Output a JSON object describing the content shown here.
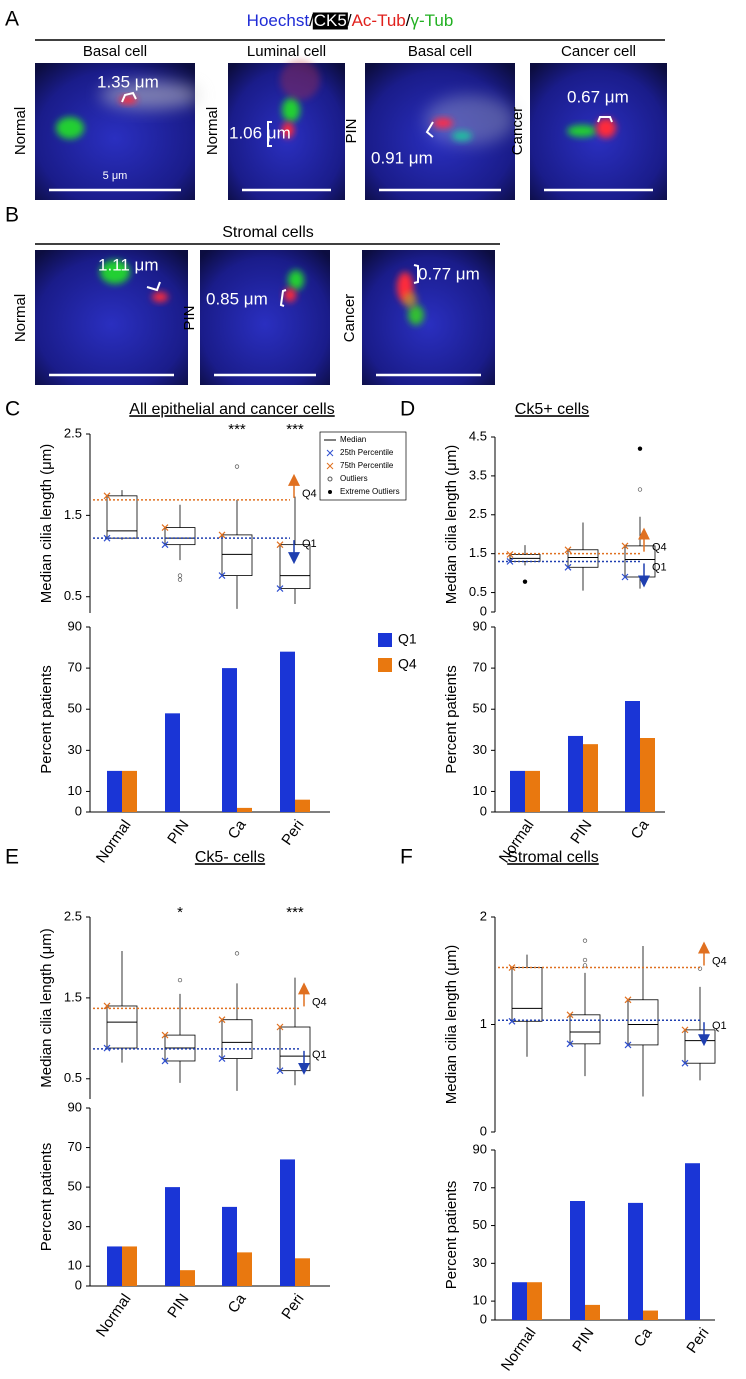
{
  "figure_panels": [
    {
      "label": "A",
      "header": [
        {
          "text": "Hoechst",
          "color": "#1f2bd6"
        },
        {
          "text": "/",
          "color": "#000000"
        },
        {
          "text": "CK5",
          "color": "#ffffff",
          "background": "#000000"
        },
        {
          "text": "/",
          "color": "#000000"
        },
        {
          "text": "Ac-Tub",
          "color": "#e0201c"
        },
        {
          "text": "/",
          "color": "#000000"
        },
        {
          "text": "γ-Tub",
          "color": "#22b022"
        }
      ],
      "images": [
        {
          "title": "Basal cell",
          "side_label": "Normal",
          "measurement": "1.35 μm",
          "scale_label": "5 μm"
        },
        {
          "title": "Luminal cell",
          "side_label": "Normal",
          "measurement": "1.06 μm"
        },
        {
          "title": "Basal cell",
          "side_label": "PIN",
          "measurement": "0.91 μm"
        },
        {
          "title": "Cancer cell",
          "side_label": "Cancer",
          "measurement": "0.67 μm"
        }
      ]
    },
    {
      "label": "B",
      "header_text": "Stromal cells",
      "images": [
        {
          "side_label": "Normal",
          "measurement": "1.11 μm"
        },
        {
          "side_label": "PIN",
          "measurement": "0.85 μm"
        },
        {
          "side_label": "Cancer",
          "measurement": "0.77 μm"
        }
      ]
    }
  ],
  "chart_data": [
    {
      "type": "box",
      "panel": "C",
      "title": "All epithelial and cancer cells",
      "ylabel": "Median cilia length (μm)",
      "ylim": [
        0.3,
        2.5
      ],
      "yticks": [
        0.5,
        1.5,
        2.5
      ],
      "q1": [
        1.22,
        1.14,
        0.76,
        0.6
      ],
      "median": [
        1.31,
        1.22,
        1.02,
        0.76
      ],
      "q3": [
        1.74,
        1.35,
        1.26,
        1.14
      ],
      "whisker_low": [
        1.2,
        0.95,
        0.35,
        0.41
      ],
      "whisker_high": [
        1.81,
        1.63,
        1.69,
        1.73
      ],
      "outliers": [
        [],
        [
          0.76,
          0.71
        ],
        [
          2.1
        ],
        []
      ],
      "significance": [
        null,
        null,
        "***",
        "***"
      ],
      "reference_lines": [
        {
          "name": "Q4",
          "value": 1.69,
          "color": "#e07020",
          "direction": "up"
        },
        {
          "name": "Q1",
          "value": 1.22,
          "color": "#1f3fb0",
          "direction": "down"
        }
      ],
      "legend": [
        "Median",
        "25th Percentile",
        "75th Percentile",
        "Outliers",
        "Extreme Outliers"
      ]
    },
    {
      "type": "bar",
      "ylabel": "Percent patients",
      "categories": [
        "Normal",
        "PIN",
        "Ca",
        "Peri"
      ],
      "ylim": [
        0,
        90
      ],
      "yticks": [
        0,
        10,
        30,
        50,
        70,
        90
      ],
      "legend": true,
      "series": [
        {
          "name": "Q1",
          "color": "#1a35d6",
          "values": [
            20,
            48,
            70,
            78
          ]
        },
        {
          "name": "Q4",
          "color": "#e9780f",
          "values": [
            20,
            0,
            2,
            6
          ]
        }
      ]
    },
    {
      "type": "box",
      "panel": "D",
      "title": "Ck5+ cells",
      "ylabel": "Median cilia length (μm)",
      "ylim": [
        0,
        4.5
      ],
      "yticks": [
        0,
        0.5,
        1.5,
        2.5,
        3.5,
        4.5
      ],
      "q1": [
        1.3,
        1.15,
        0.9
      ],
      "median": [
        1.38,
        1.4,
        1.35
      ],
      "q3": [
        1.48,
        1.6,
        1.7
      ],
      "whisker_low": [
        1.2,
        0.55,
        0.6
      ],
      "whisker_high": [
        1.72,
        2.3,
        2.45
      ],
      "outliers": [
        [],
        [],
        [
          3.15
        ]
      ],
      "extreme_outliers": [
        [
          0.78
        ],
        [],
        [
          4.2
        ]
      ],
      "reference_lines": [
        {
          "name": "Q4",
          "value": 1.5,
          "color": "#e07020",
          "direction": "up"
        },
        {
          "name": "Q1",
          "value": 1.3,
          "color": "#1f3fb0",
          "direction": "down"
        }
      ]
    },
    {
      "type": "bar",
      "ylabel": "Percent patients",
      "categories": [
        "Normal",
        "PIN",
        "Ca"
      ],
      "ylim": [
        0,
        90
      ],
      "yticks": [
        0,
        10,
        30,
        50,
        70,
        90
      ],
      "series": [
        {
          "color": "#1a35d6",
          "values": [
            20,
            37,
            54
          ]
        },
        {
          "color": "#e9780f",
          "values": [
            20,
            33,
            36
          ]
        }
      ]
    },
    {
      "type": "box",
      "panel": "E",
      "title": "Ck5- cells",
      "ylabel": "Median cilia length (μm)",
      "ylim": [
        0.25,
        2.5
      ],
      "yticks": [
        0.5,
        1.5,
        2.5
      ],
      "q1": [
        0.88,
        0.72,
        0.75,
        0.6
      ],
      "median": [
        1.2,
        0.88,
        0.95,
        0.78
      ],
      "q3": [
        1.4,
        1.04,
        1.23,
        1.14
      ],
      "whisker_low": [
        0.7,
        0.45,
        0.35,
        0.42
      ],
      "whisker_high": [
        2.08,
        1.55,
        1.68,
        1.75
      ],
      "outliers": [
        [],
        [
          1.72
        ],
        [
          2.05
        ],
        []
      ],
      "significance": [
        null,
        "*",
        null,
        "***"
      ],
      "reference_lines": [
        {
          "name": "Q4",
          "value": 1.37,
          "color": "#e07020",
          "direction": "up"
        },
        {
          "name": "Q1",
          "value": 0.87,
          "color": "#1f3fb0",
          "direction": "down"
        }
      ]
    },
    {
      "type": "bar",
      "ylabel": "Percent patients",
      "categories": [
        "Normal",
        "PIN",
        "Ca",
        "Peri"
      ],
      "ylim": [
        0,
        90
      ],
      "yticks": [
        0,
        10,
        30,
        50,
        70,
        90
      ],
      "series": [
        {
          "color": "#1a35d6",
          "values": [
            20,
            50,
            40,
            64
          ]
        },
        {
          "color": "#e9780f",
          "values": [
            20,
            8,
            17,
            14
          ]
        }
      ]
    },
    {
      "type": "box",
      "panel": "F",
      "title": "Stromal cells",
      "ylabel": "Median cilia length (μm)",
      "ylim": [
        0,
        2
      ],
      "yticks": [
        0,
        1,
        2
      ],
      "q1": [
        1.03,
        0.82,
        0.81,
        0.64
      ],
      "median": [
        1.15,
        0.93,
        1.0,
        0.85
      ],
      "q3": [
        1.53,
        1.09,
        1.23,
        0.95
      ],
      "whisker_low": [
        0.7,
        0.52,
        0.33,
        0.48
      ],
      "whisker_high": [
        1.65,
        1.48,
        1.73,
        1.35
      ],
      "outliers": [
        [],
        [
          1.55,
          1.6,
          1.78
        ],
        [],
        [
          1.52
        ]
      ],
      "reference_lines": [
        {
          "name": "Q4",
          "value": 1.53,
          "color": "#e07020",
          "direction": "up"
        },
        {
          "name": "Q1",
          "value": 1.04,
          "color": "#1f3fb0",
          "direction": "down"
        }
      ]
    },
    {
      "type": "bar",
      "ylabel": "Percent patients",
      "categories": [
        "Normal",
        "PIN",
        "Ca",
        "Peri"
      ],
      "ylim": [
        0,
        90
      ],
      "yticks": [
        0,
        10,
        30,
        50,
        70,
        90
      ],
      "series": [
        {
          "color": "#1a35d6",
          "values": [
            20,
            63,
            62,
            83
          ]
        },
        {
          "color": "#e9780f",
          "values": [
            20,
            8,
            5,
            0
          ]
        }
      ]
    }
  ]
}
